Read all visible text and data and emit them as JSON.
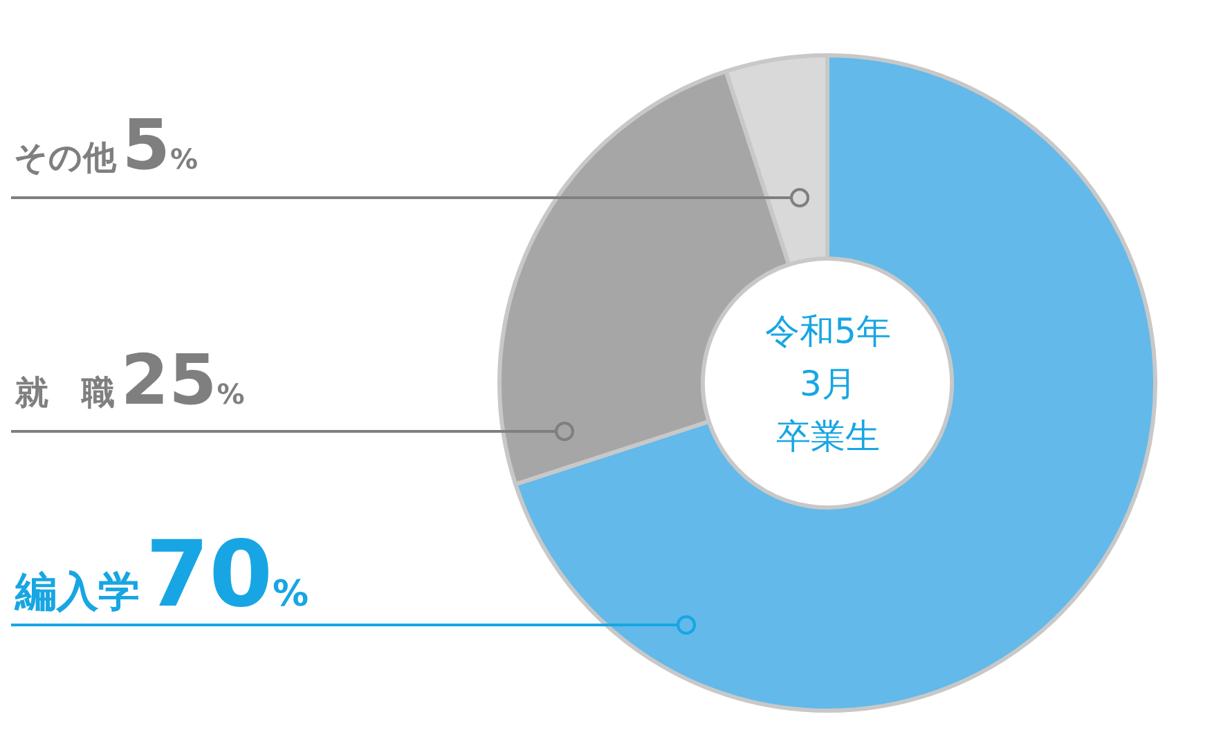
{
  "chart_data": {
    "type": "donut",
    "categories": [
      "編入学",
      "就　職",
      "その他"
    ],
    "values": [
      70,
      25,
      5
    ],
    "value_labels": [
      "70%",
      "25%",
      "5%"
    ],
    "colors": [
      "#62b9ea",
      "#a6a6a6",
      "#d9d9d9"
    ],
    "annotations": [
      "令和5年",
      "3月",
      "卒業生"
    ]
  }
}
